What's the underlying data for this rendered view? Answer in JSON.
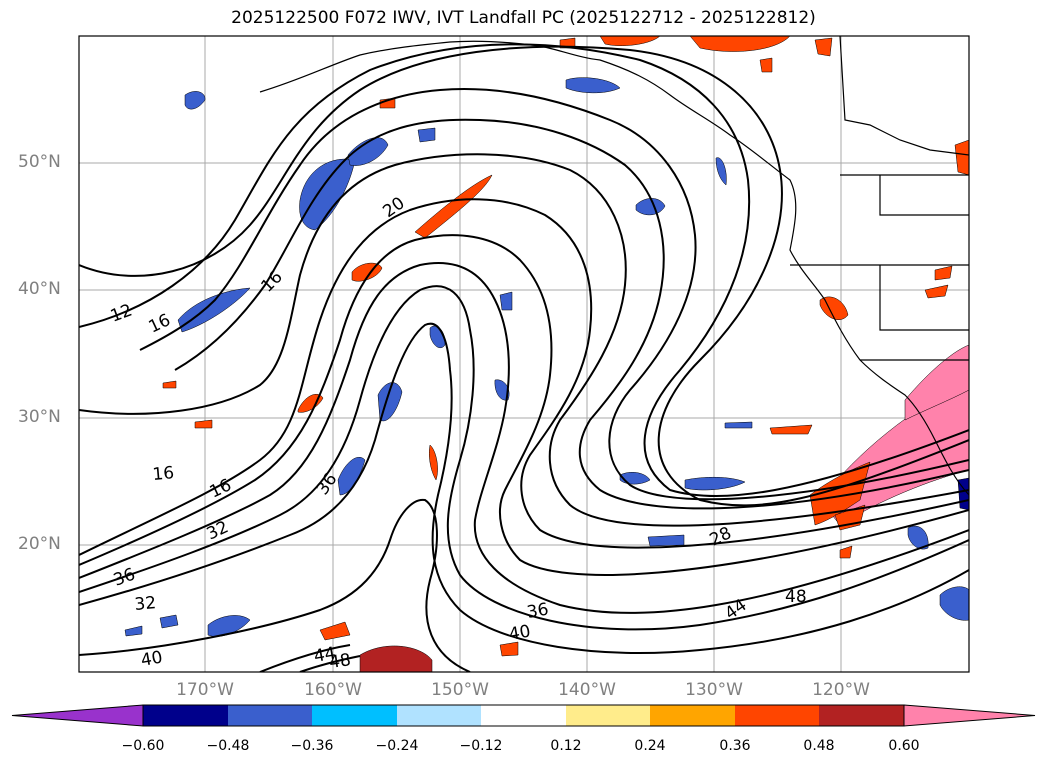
{
  "title": "2025122500 F072 IWV, IVT Landfall PC (2025122712 - 2025122812)",
  "map": {
    "lon_labels": [
      "170°W",
      "160°W",
      "150°W",
      "140°W",
      "130°W",
      "120°W"
    ],
    "lat_labels": [
      "50°N",
      "40°N",
      "30°N",
      "20°N"
    ],
    "contour_labels": [
      "12",
      "16",
      "16",
      "20",
      "16",
      "16",
      "32",
      "36",
      "32",
      "36",
      "40",
      "40",
      "44",
      "48",
      "36",
      "28",
      "44",
      "48"
    ]
  },
  "colorbar": {
    "ticks": [
      "−0.60",
      "−0.48",
      "−0.36",
      "−0.24",
      "−0.12",
      "0.12",
      "0.24",
      "0.36",
      "0.48",
      "0.60"
    ],
    "colors": [
      "#9932cc",
      "#00008b",
      "#3a5fcd",
      "#00bfff",
      "#b0e2ff",
      "#ffffff",
      "#ffec8b",
      "#ffa500",
      "#ff4500",
      "#b22222",
      "#ff82ab"
    ]
  }
}
